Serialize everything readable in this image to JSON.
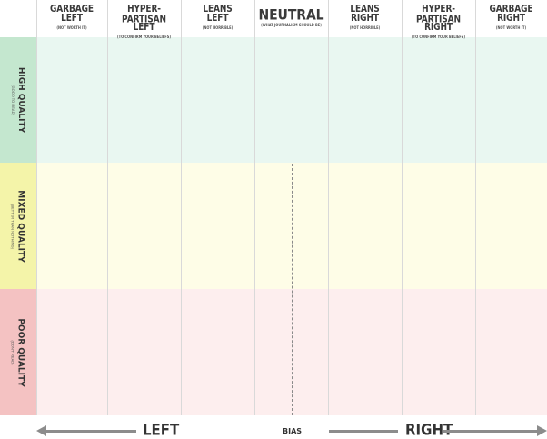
{
  "columns": [
    {
      "title1": "GARBAGE",
      "title2": "LEFT",
      "sub": "(NOT WORTH IT)"
    },
    {
      "title1": "HYPER-PARTISAN",
      "title2": "LEFT",
      "sub": "(TO CONFIRM YOUR BELIEFS)"
    },
    {
      "title1": "LEANS",
      "title2": "LEFT",
      "sub": "(NOT HORRIBLE)"
    },
    {
      "title1": "NEUTRAL",
      "title2": "",
      "sub": "(WHAT JOURNALISM SHOULD BE)"
    },
    {
      "title1": "LEANS",
      "title2": "RIGHT",
      "sub": "(NOT HORRIBLE)"
    },
    {
      "title1": "HYPER-PARTISAN",
      "title2": "RIGHT",
      "sub": "(TO CONFIRM YOUR BELIEFS)"
    },
    {
      "title1": "GARBAGE",
      "title2": "RIGHT",
      "sub": "(NOT WORTH IT)"
    }
  ],
  "rows": [
    {
      "title": "HIGH QUALITY",
      "sub": "(GOOD TO READ)",
      "color": "#c4e7cf"
    },
    {
      "title": "MIXED QUALITY",
      "sub": "(BETTER THAN NOTHING)",
      "color": "#f4f4a9"
    },
    {
      "title": "POOR QUALITY",
      "sub": "(DON'T READ)",
      "color": "#f4c2c2"
    }
  ],
  "axis": {
    "left": "LEFT",
    "center": "BIAS",
    "right": "RIGHT"
  }
}
